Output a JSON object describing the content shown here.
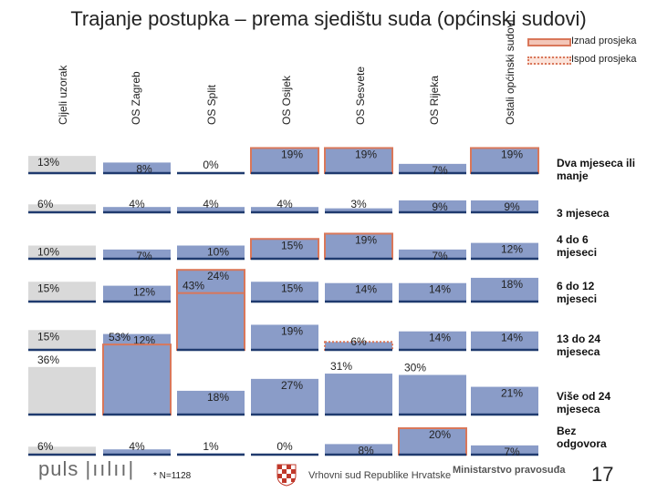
{
  "title": "Trajanje postupka – prema sjedištu suda (općinski sudovi)",
  "legend": {
    "above": "Iznad prosjeka",
    "below": "Ispod prosjeka"
  },
  "colors": {
    "bar_fill": "#8a9cc8",
    "bar_fill_total": "#d9d9d9",
    "baseline": "#1f3a6e",
    "above_border": "#d9775a",
    "below_border": "#d9775a"
  },
  "chart_data": {
    "type": "bar",
    "layout": "small-multiples",
    "title": "Trajanje postupka – prema sjedištu suda (općinski sudovi)",
    "columns": [
      "Cijeli uzorak",
      "OS Zagreb",
      "OS Split",
      "OS Osijek",
      "OS Sesvete",
      "OS Rijeka",
      "Ostali općinski sudovi"
    ],
    "categories": [
      "Dva mjeseca ili manje",
      "3 mjeseca",
      "4 do 6 mjeseci",
      "6 do 12 mjeseci",
      "13 do 24 mjeseca",
      "Više od 24 mjeseca",
      "Bez odgovora"
    ],
    "values": [
      [
        13,
        8,
        0,
        19,
        19,
        7,
        19
      ],
      [
        6,
        4,
        4,
        4,
        3,
        9,
        9
      ],
      [
        10,
        7,
        10,
        15,
        19,
        7,
        12
      ],
      [
        15,
        12,
        24,
        15,
        14,
        14,
        18
      ],
      [
        15,
        12,
        43,
        19,
        6,
        14,
        14
      ],
      [
        36,
        53,
        18,
        27,
        31,
        30,
        21
      ],
      [
        6,
        4,
        1,
        0,
        8,
        20,
        7
      ]
    ],
    "labels": [
      [
        "13%",
        "8%",
        "0%",
        "19%",
        "19%",
        "7%",
        "19%"
      ],
      [
        "6%",
        "4%",
        "4%",
        "4%",
        "3%",
        "9%",
        "9%"
      ],
      [
        "10%",
        "7%",
        "10%",
        "15%",
        "19%",
        "7%",
        "12%"
      ],
      [
        "15%",
        "12%",
        "24%",
        "15%",
        "14%",
        "14%",
        "18%"
      ],
      [
        "15%",
        "12%",
        "43%",
        "19%",
        "6%",
        "14%",
        "14%"
      ],
      [
        "36%",
        "53%",
        "18%",
        "27%",
        "31%",
        "30%",
        "21%"
      ],
      [
        "6%",
        "4%",
        "1%",
        "0%",
        "8%",
        "20%",
        "7%"
      ]
    ],
    "highlight": [
      [
        "none",
        "none",
        "none",
        "above",
        "above",
        "none",
        "above"
      ],
      [
        "none",
        "none",
        "none",
        "none",
        "none",
        "none",
        "none"
      ],
      [
        "none",
        "none",
        "none",
        "above",
        "above",
        "none",
        "none"
      ],
      [
        "none",
        "none",
        "above",
        "none",
        "none",
        "none",
        "none"
      ],
      [
        "none",
        "none",
        "above",
        "none",
        "below",
        "none",
        "none"
      ],
      [
        "none",
        "above",
        "none",
        "none",
        "none",
        "none",
        "none"
      ],
      [
        "none",
        "none",
        "none",
        "none",
        "none",
        "above",
        "none"
      ]
    ],
    "ylim": [
      0,
      60
    ]
  },
  "footer": {
    "logo": "puls",
    "n": "* N=1128",
    "court": "Vrhovni sud Republike Hrvatske",
    "ministry": "Ministarstvo pravosuđa",
    "page": "17"
  }
}
